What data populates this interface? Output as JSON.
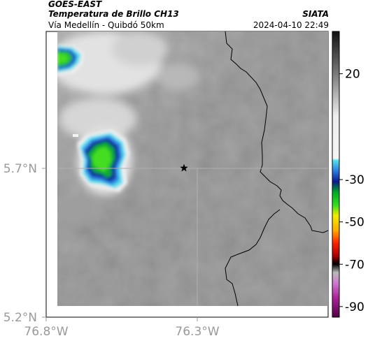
{
  "header": {
    "satellite": "GOES-EAST",
    "product": "Temperatura de Brillo CH13",
    "region": "Vía Medellín - Quibdó 50km",
    "organization": "SIATA",
    "datetime": "2024-04-10 22:49"
  },
  "map": {
    "lon_ticks": [
      "76.8°W",
      "76.3°W"
    ],
    "lat_ticks": [
      "5.7°N",
      "5.2°N"
    ],
    "marker_icon": "star-icon",
    "background_color": "#8a8a8a"
  },
  "colorbar": {
    "tick_labels": [
      "20",
      "-30",
      "-50",
      "-70",
      "-90"
    ],
    "values": [
      20,
      -30,
      -50,
      -70,
      -90
    ],
    "range": [
      -95,
      40
    ],
    "stops": [
      {
        "value": 40,
        "color": "#111111"
      },
      {
        "value": 20,
        "color": "#7a7a7a"
      },
      {
        "value": 0,
        "color": "#eeeeee"
      },
      {
        "value": -20,
        "color": "#f4f4f4"
      },
      {
        "value": -21,
        "color": "#55ddee"
      },
      {
        "value": -26,
        "color": "#2a7ae0"
      },
      {
        "value": -31,
        "color": "#0a1a90"
      },
      {
        "value": -36,
        "color": "#00aa22"
      },
      {
        "value": -42,
        "color": "#33dd22"
      },
      {
        "value": -47,
        "color": "#eeee00"
      },
      {
        "value": -54,
        "color": "#ffaa00"
      },
      {
        "value": -60,
        "color": "#ff2200"
      },
      {
        "value": -66,
        "color": "#aa0000"
      },
      {
        "value": -70,
        "color": "#000000"
      },
      {
        "value": -74,
        "color": "#bbbbbb"
      },
      {
        "value": -79,
        "color": "#cc77cc"
      },
      {
        "value": -86,
        "color": "#aa2299"
      },
      {
        "value": -95,
        "color": "#550044"
      }
    ]
  }
}
